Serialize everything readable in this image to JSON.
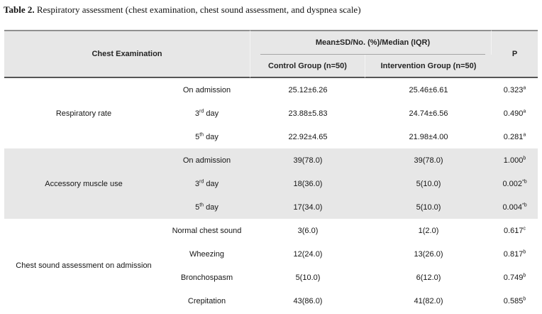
{
  "caption": {
    "label": "Table 2.",
    "text": " Respiratory assessment (chest examination, chest sound assessment, and dyspnea scale)"
  },
  "table": {
    "header": {
      "col_main": "Chest Examination",
      "col_group": "Mean±SD/No. (%)/Median (IQR)",
      "col_control": "Control Group (n=50)",
      "col_intervention": "Intervention Group (n=50)",
      "col_p": "P"
    },
    "sections": [
      {
        "category": "Respiratory rate",
        "shaded": false,
        "rows": [
          {
            "label": "On admission",
            "control": "25.12±6.26",
            "intervention": "25.46±6.61",
            "p": "0.323^{a}"
          },
          {
            "label": "3^{rd} day",
            "control": "23.88±5.83",
            "intervention": "24.74±6.56",
            "p": "0.490^{a}"
          },
          {
            "label": "5^{th} day",
            "control": "22.92±4.65",
            "intervention": "21.98±4.00",
            "p": "0.281^{a}"
          }
        ]
      },
      {
        "category": "Accessory muscle use",
        "shaded": true,
        "rows": [
          {
            "label": "On admission",
            "control": "39(78.0)",
            "intervention": "39(78.0)",
            "p": "1.000^{b}"
          },
          {
            "label": "3^{rd} day",
            "control": "18(36.0)",
            "intervention": "5(10.0)",
            "p": "0.002^{*b}"
          },
          {
            "label": "5^{th} day",
            "control": "17(34.0)",
            "intervention": "5(10.0)",
            "p": "0.004^{*b}"
          }
        ]
      },
      {
        "category": "Chest sound assessment on admission",
        "shaded": false,
        "rows": [
          {
            "label": "Normal chest sound",
            "control": "3(6.0)",
            "intervention": "1(2.0)",
            "p": "0.617^{c}"
          },
          {
            "label": "Wheezing",
            "control": "12(24.0)",
            "intervention": "13(26.0)",
            "p": "0.817^{b}"
          },
          {
            "label": "Bronchospasm",
            "control": "5(10.0)",
            "intervention": "6(12.0)",
            "p": "0.749^{b}"
          },
          {
            "label": "Crepitation",
            "control": "43(86.0)",
            "intervention": "41(82.0)",
            "p": "0.585^{b}"
          }
        ]
      }
    ]
  },
  "colors": {
    "header-bg": "#e7e7e7",
    "shaded-bg": "#e7e7e7",
    "top-border": "#909090",
    "header-rule": "#565656",
    "group-rule": "#a5a5a5",
    "text": "#1b1b1b"
  }
}
